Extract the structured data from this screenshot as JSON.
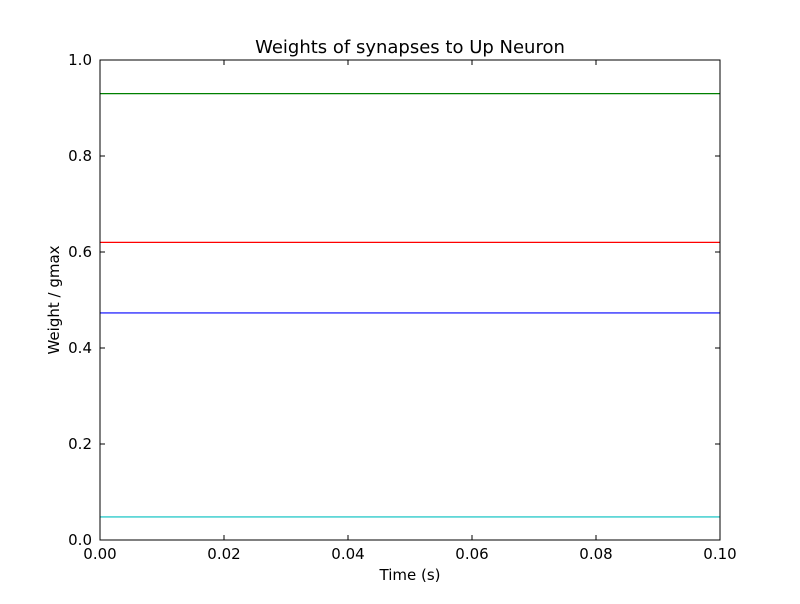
{
  "chart_data": {
    "type": "line",
    "title": "Weights of synapses to Up Neuron",
    "xlabel": "Time (s)",
    "ylabel": "Weight / gmax",
    "xlim": [
      0.0,
      0.1
    ],
    "ylim": [
      0.0,
      1.0
    ],
    "x_ticks": [
      "0.00",
      "0.02",
      "0.04",
      "0.06",
      "0.08",
      "0.10"
    ],
    "y_ticks": [
      "0.0",
      "0.2",
      "0.4",
      "0.6",
      "0.8",
      "1.0"
    ],
    "grid": false,
    "series": [
      {
        "color": "#008000",
        "x": [
          0.0,
          0.1
        ],
        "values": [
          0.93,
          0.93
        ]
      },
      {
        "color": "#ff0000",
        "x": [
          0.0,
          0.1
        ],
        "values": [
          0.62,
          0.62
        ]
      },
      {
        "color": "#0000ff",
        "x": [
          0.0,
          0.1
        ],
        "values": [
          0.473,
          0.473
        ]
      },
      {
        "color": "#00bfbf",
        "x": [
          0.0,
          0.1
        ],
        "values": [
          0.048,
          0.048
        ]
      }
    ]
  }
}
